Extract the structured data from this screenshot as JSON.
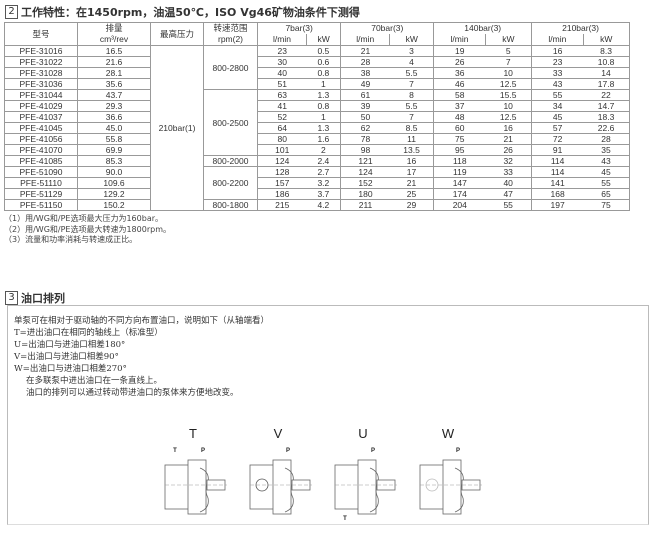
{
  "section2": {
    "number": "2",
    "title": "工作特性：在1450rpm，油温50℃，ISO Vg46矿物油条件下测得"
  },
  "table": {
    "headers": {
      "model": "型号",
      "displacement": "排量",
      "displacement_unit": "cm³/rev",
      "max_pressure": "最高压力",
      "speed_range": "转速范围",
      "speed_unit": "rpm(2)",
      "p7": "7bar(3)",
      "p70": "70bar(3)",
      "p140": "140bar(3)",
      "p210": "210bar(3)",
      "flow": "l/min",
      "power": "kW"
    },
    "max_pressure_value": "210bar(1)",
    "speed_groups": [
      {
        "label": "800-2800",
        "rows": 4
      },
      {
        "label": "800-2500",
        "rows": 6
      },
      {
        "label": "800-2000",
        "rows": 1
      },
      {
        "label": "800-2200",
        "rows": 3
      },
      {
        "label": "800-1800",
        "rows": 1
      }
    ],
    "rows": [
      [
        "PFE-31016",
        "16.5",
        "23",
        "0.5",
        "21",
        "3",
        "19",
        "5",
        "16",
        "8.3"
      ],
      [
        "PFE-31022",
        "21.6",
        "30",
        "0.6",
        "28",
        "4",
        "26",
        "7",
        "23",
        "10.8"
      ],
      [
        "PFE-31028",
        "28.1",
        "40",
        "0.8",
        "38",
        "5.5",
        "36",
        "10",
        "33",
        "14"
      ],
      [
        "PFE-31036",
        "35.6",
        "51",
        "1",
        "49",
        "7",
        "46",
        "12.5",
        "43",
        "17.8"
      ],
      [
        "PFE-31044",
        "43.7",
        "63",
        "1.3",
        "61",
        "8",
        "58",
        "15.5",
        "55",
        "22"
      ],
      [
        "PFE-41029",
        "29.3",
        "41",
        "0.8",
        "39",
        "5.5",
        "37",
        "10",
        "34",
        "14.7"
      ],
      [
        "PFE-41037",
        "36.6",
        "52",
        "1",
        "50",
        "7",
        "48",
        "12.5",
        "45",
        "18.3"
      ],
      [
        "PFE-41045",
        "45.0",
        "64",
        "1.3",
        "62",
        "8.5",
        "60",
        "16",
        "57",
        "22.6"
      ],
      [
        "PFE-41056",
        "55.8",
        "80",
        "1.6",
        "78",
        "11",
        "75",
        "21",
        "72",
        "28"
      ],
      [
        "PFE-41070",
        "69.9",
        "101",
        "2",
        "98",
        "13.5",
        "95",
        "26",
        "91",
        "35"
      ],
      [
        "PFE-41085",
        "85.3",
        "124",
        "2.4",
        "121",
        "16",
        "118",
        "32",
        "114",
        "43"
      ],
      [
        "PFE-51090",
        "90.0",
        "128",
        "2.7",
        "124",
        "17",
        "119",
        "33",
        "114",
        "45"
      ],
      [
        "PFE-51110",
        "109.6",
        "157",
        "3.2",
        "152",
        "21",
        "147",
        "40",
        "141",
        "55"
      ],
      [
        "PFE-51129",
        "129.2",
        "186",
        "3.7",
        "180",
        "25",
        "174",
        "47",
        "168",
        "65"
      ],
      [
        "PFE-51150",
        "150.2",
        "215",
        "4.2",
        "211",
        "29",
        "204",
        "55",
        "197",
        "75"
      ]
    ]
  },
  "notes": [
    "（1）用/WG和/PE选项最大压力为160bar。",
    "（2）用/WG和/PE选项最大转速为1800rpm。",
    "（3）流量和功率消耗与转速成正比。"
  ],
  "section3": {
    "number": "3",
    "title": "油口排列",
    "lines": [
      "单泵可在相对于驱动轴的不同方向布置油口，说明如下（从轴端看）",
      "T=进出油口在相同的轴线上（标准型）",
      "U=出油口与进油口相差180°",
      "V=出油口与进油口相差90°",
      "W=出油口与进油口相差270°"
    ],
    "indented": [
      "在多联泵中进出油口在一条直线上。",
      "油口的排列可以通过转动带进油口的泵体来方便地改变。"
    ],
    "pumps": [
      {
        "label": "T",
        "ports": [
          "T",
          "P"
        ]
      },
      {
        "label": "V",
        "ports": [
          "P"
        ]
      },
      {
        "label": "U",
        "ports": [
          "P",
          "T"
        ]
      },
      {
        "label": "W",
        "ports": [
          "P"
        ]
      }
    ]
  }
}
